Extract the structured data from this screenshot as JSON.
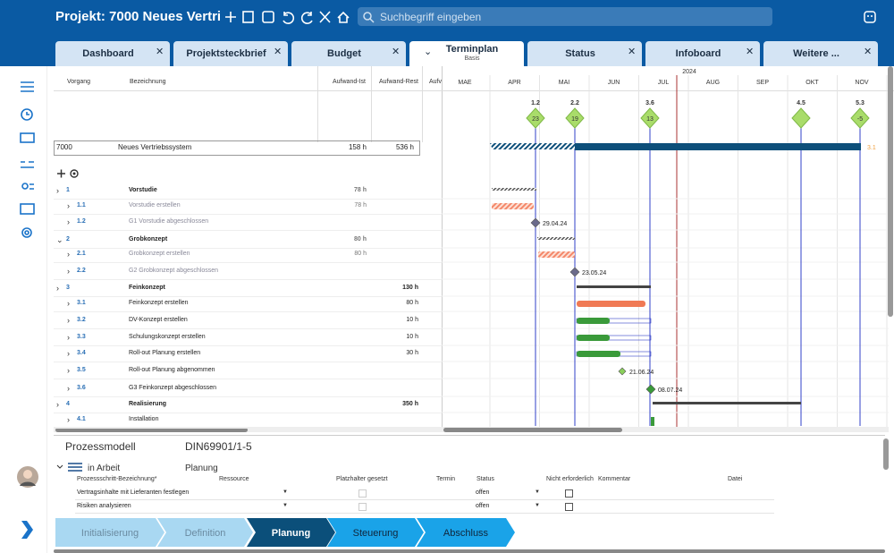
{
  "header": {
    "title": "Projekt: 7000 Neues Vertri",
    "search": "Suchbegriff eingeben"
  },
  "tabs": [
    "Dashboard",
    "Projektsteckbrief",
    "Budget",
    "Terminplan",
    "Status",
    "Infoboard",
    "Weitere ..."
  ],
  "active_tab_subtitle": "Basis",
  "columns": [
    "Vorgang",
    "Bezeichnung",
    "Aufwand-Ist",
    "Aufwand-Rest",
    "Aufv"
  ],
  "gantt": {
    "year": "2024",
    "months": [
      "MAE",
      "APR",
      "MAI",
      "JUN",
      "JUL",
      "AUG",
      "SEP",
      "OKT",
      "NOV"
    ],
    "milestones": [
      {
        "label": "1.2",
        "value": "23"
      },
      {
        "label": "2.2",
        "value": "19"
      },
      {
        "label": "3.6",
        "value": "13"
      },
      {
        "label": "4.5",
        "value": null
      },
      {
        "label": "5.3",
        "value": "-5"
      }
    ],
    "project_marker": "3.1",
    "dates": [
      "29.04.24",
      "23.05.24",
      "21.06.24",
      "08.07.24"
    ]
  },
  "project": {
    "id": "7000",
    "name": "Neues Vertriebssystem",
    "ist": "158 h",
    "rest": "536 h"
  },
  "rows": [
    {
      "id": "1",
      "name": "Vorstudie",
      "ist": "78 h",
      "rest": null
    },
    {
      "id": "1.1",
      "name": "Vorstudie erstellen",
      "ist": "78 h",
      "rest": null
    },
    {
      "id": "1.2",
      "name": "G1 Vorstudie abgeschlossen",
      "ist": null,
      "rest": null
    },
    {
      "id": "2",
      "name": "Grobkonzept",
      "ist": "80 h",
      "rest": null
    },
    {
      "id": "2.1",
      "name": "Grobkonzept erstellen",
      "ist": "80 h",
      "rest": null
    },
    {
      "id": "2.2",
      "name": "G2 Grobkonzept abgeschlossen",
      "ist": null,
      "rest": null
    },
    {
      "id": "3",
      "name": "Feinkonzept",
      "ist": null,
      "rest": "130 h"
    },
    {
      "id": "3.1",
      "name": "Feinkonzept erstellen",
      "ist": null,
      "rest": "80 h"
    },
    {
      "id": "3.2",
      "name": "DV-Konzept erstellen",
      "ist": null,
      "rest": "10 h"
    },
    {
      "id": "3.3",
      "name": "Schulungskonzept erstellen",
      "ist": null,
      "rest": "10 h"
    },
    {
      "id": "3.4",
      "name": "Roll-out Planung erstellen",
      "ist": null,
      "rest": "30 h"
    },
    {
      "id": "3.5",
      "name": "Roll-out Planung abgenommen",
      "ist": null,
      "rest": null
    },
    {
      "id": "3.6",
      "name": "G3 Feinkonzept abgeschlossen",
      "ist": null,
      "rest": null
    },
    {
      "id": "4",
      "name": "Realisierung",
      "ist": null,
      "rest": "350 h"
    },
    {
      "id": "4.1",
      "name": "Installation",
      "ist": null,
      "rest": null
    }
  ],
  "process": {
    "title": "Prozessmodell",
    "model": "DIN69901/1-5",
    "state": "in Arbeit",
    "phase": "Planung",
    "table_header": [
      "Prozessschritt-Bezeichnung*",
      "Ressource",
      "Platzhalter gesetzt",
      "Termin",
      "Status",
      "Nicht erforderlich",
      "Kommentar",
      "Datei"
    ],
    "rows": [
      {
        "name": "Vertragsinhalte mit Lieferanten festlegen",
        "status": "offen"
      },
      {
        "name": "Risiken analysieren",
        "status": "offen"
      }
    ],
    "steps": [
      "Initialisierung",
      "Definition",
      "Planung",
      "Steuerung",
      "Abschluss"
    ]
  }
}
